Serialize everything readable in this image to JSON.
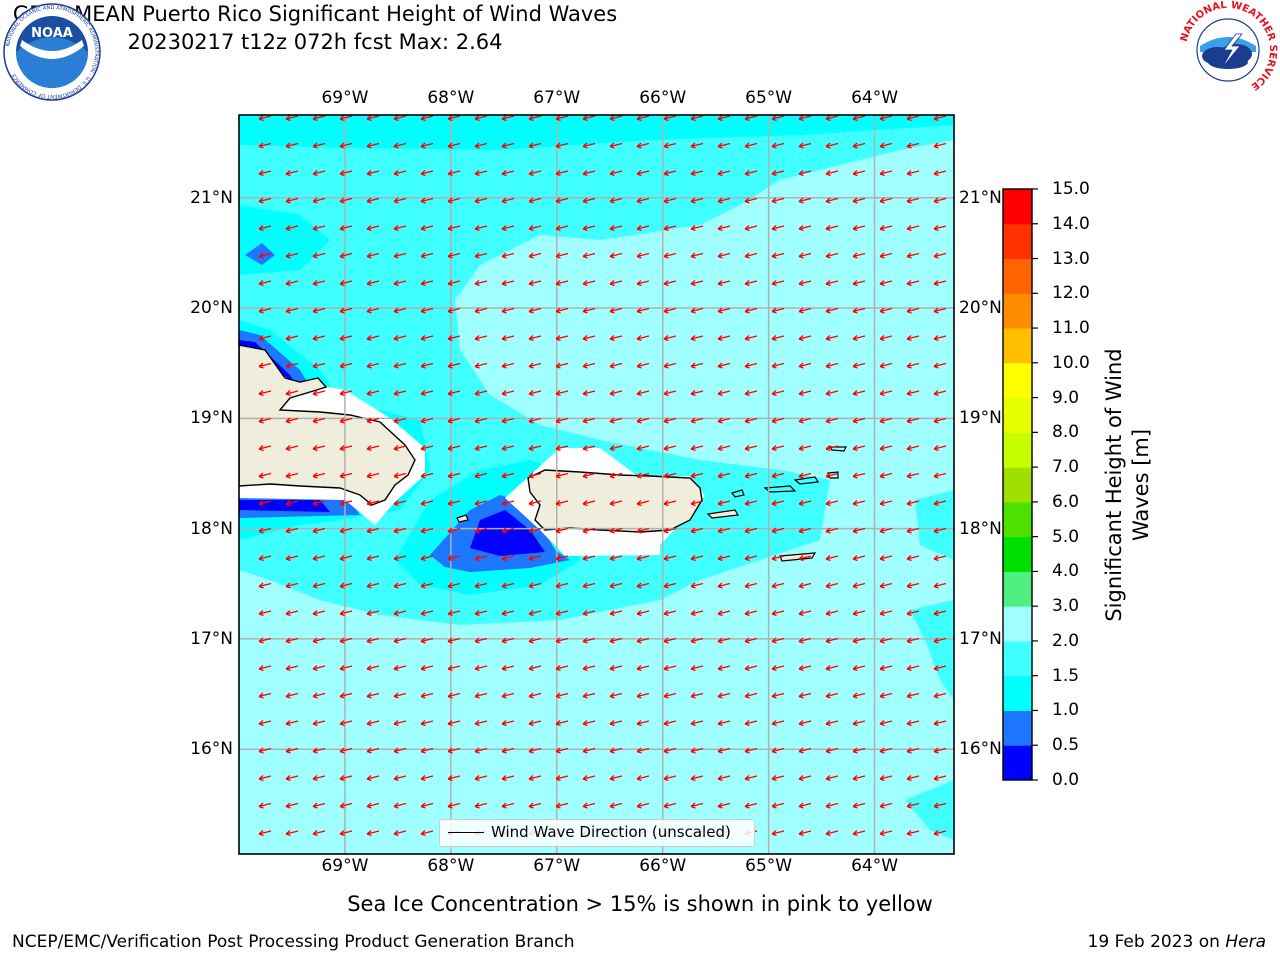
{
  "header": {
    "title_line1": "GEFS MEAN Puerto Rico Significant Height of Wind Waves",
    "title_line2": "20230217 t12z 072h fcst   Max: 2.64"
  },
  "logos": {
    "left": {
      "name": "noaa-logo",
      "text": "NOAA",
      "ring_text": "NATIONAL OCEANIC AND ATMOSPHERIC ADMINISTRATION · U.S. DEPARTMENT OF COMMERCE"
    },
    "right": {
      "name": "nws-logo",
      "ring_text": "NATIONAL WEATHER SERVICE"
    }
  },
  "map": {
    "lon_ticks": [
      "69°W",
      "68°W",
      "67°W",
      "66°W",
      "65°W",
      "64°W"
    ],
    "lat_ticks": [
      "21°N",
      "20°N",
      "19°N",
      "18°N",
      "17°N",
      "16°N"
    ],
    "lon_range": [
      -70.0,
      -63.25
    ],
    "lat_range": [
      15.05,
      21.75
    ],
    "land_color": "#efeddc",
    "arrow_color": "#ff0000",
    "grid": true,
    "legend_label": "Wind Wave Direction (unscaled)"
  },
  "colorbar": {
    "label_line1": "Significant Height of Wind",
    "label_line2": "Waves [m]",
    "ticks": [
      "0.0",
      "0.5",
      "1.0",
      "1.5",
      "2.0",
      "3.0",
      "4.0",
      "5.0",
      "6.0",
      "7.0",
      "8.0",
      "9.0",
      "10.0",
      "11.0",
      "12.0",
      "13.0",
      "14.0",
      "15.0"
    ],
    "colors": [
      "#0000ff",
      "#1e78ff",
      "#00ffff",
      "#40ffff",
      "#a0ffff",
      "#50f080",
      "#00e000",
      "#50e000",
      "#a0e000",
      "#c8ff00",
      "#e8ff00",
      "#ffff00",
      "#ffbe00",
      "#ff8c00",
      "#ff6400",
      "#ff3200",
      "#ff0000"
    ]
  },
  "note": "Sea Ice Concentration > 15% is shown in pink to yellow",
  "footer": {
    "left": "NCEP/EMC/Verification Post Processing Product Generation Branch",
    "right_prefix": "19 Feb 2023 on ",
    "right_host": "Hera"
  }
}
